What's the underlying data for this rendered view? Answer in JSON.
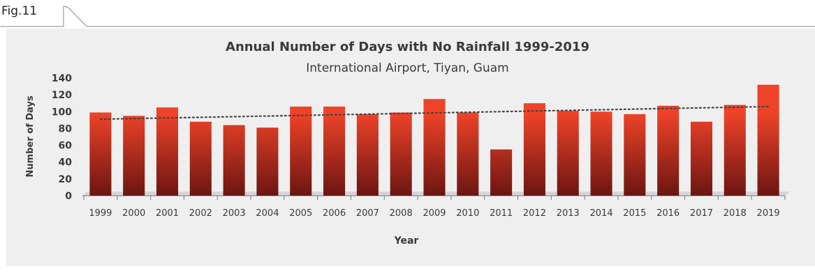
{
  "figure": {
    "label": "Fig.11"
  },
  "colors": {
    "panel_background": "#efefef",
    "bar_top": "#ee4328",
    "bar_bottom": "#6b1512",
    "trendline": "#444444",
    "text": "#3a3a3a"
  },
  "chart_data": {
    "type": "bar",
    "title": "Annual Number of Days with No Rainfall 1999-2019",
    "subtitle": "International Airport, Tiyan, Guam",
    "xlabel": "Year",
    "ylabel": "Number of Days",
    "ylim": [
      0,
      140
    ],
    "yticks": [
      0,
      20,
      40,
      60,
      80,
      100,
      120,
      140
    ],
    "grid": false,
    "categories": [
      "1999",
      "2000",
      "2001",
      "2002",
      "2003",
      "2004",
      "2005",
      "2006",
      "2007",
      "2008",
      "2009",
      "2010",
      "2011",
      "2012",
      "2013",
      "2014",
      "2015",
      "2016",
      "2017",
      "2018",
      "2019"
    ],
    "values": [
      99,
      95,
      105,
      88,
      84,
      81,
      106,
      106,
      97,
      99,
      115,
      99,
      55,
      110,
      101,
      100,
      97,
      107,
      88,
      108,
      132
    ],
    "trendline": {
      "style": "dotted",
      "start": 91,
      "end": 106
    }
  }
}
